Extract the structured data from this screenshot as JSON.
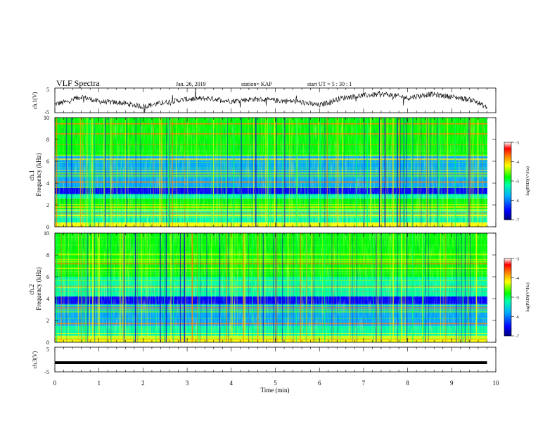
{
  "header": {
    "title": "VLF Spectra",
    "date": "Jan. 26, 2019",
    "station": "station= KAP",
    "start": "start  UT =   5 : 30 : 1"
  },
  "chart_data": [
    {
      "type": "line",
      "name": "ch1-voltage",
      "ylabel": "ch.1(V)",
      "ylim": [
        -5,
        5
      ],
      "yticks": [
        "5",
        "-5"
      ],
      "x": [
        0,
        0.3,
        0.6,
        1.0,
        1.5,
        2.0,
        2.5,
        3.0,
        3.5,
        4.0,
        4.5,
        5.0,
        5.5,
        6.0,
        6.5,
        7.0,
        7.5,
        8.0,
        8.5,
        9.0,
        9.5,
        9.8
      ],
      "y": [
        -1.5,
        -0.5,
        1.5,
        -0.5,
        -1.0,
        -2.5,
        -0.8,
        0.5,
        0.8,
        -0.3,
        0.5,
        0.0,
        -0.5,
        -2.0,
        1.0,
        2.0,
        2.5,
        1.0,
        2.5,
        1.5,
        0.0,
        -3.0
      ]
    },
    {
      "type": "heatmap",
      "name": "ch1-spectrogram",
      "ylabel": "ch.1\nFrequency (kHz)",
      "xlim": [
        0,
        10
      ],
      "ylim": [
        0,
        10
      ],
      "yticks": [
        "0",
        "2",
        "4",
        "6",
        "8",
        "10"
      ],
      "colorbar": {
        "label": "log(PSD)(V²/Hz)",
        "ticks": [
          "-3",
          "-4",
          "-5",
          "-6",
          "-7"
        ],
        "range": [
          -7,
          -3
        ]
      },
      "bands": [
        {
          "range_khz": [
            0,
            0.4
          ],
          "level": -4.5
        },
        {
          "range_khz": [
            0.4,
            1.6
          ],
          "level": -5.3
        },
        {
          "range_khz": [
            1.6,
            2.6
          ],
          "level": -5.0
        },
        {
          "range_khz": [
            2.6,
            3.0
          ],
          "level": -5.3
        },
        {
          "range_khz": [
            3.0,
            3.6
          ],
          "level": -6.6
        },
        {
          "range_khz": [
            3.6,
            5.0
          ],
          "level": -6.0
        },
        {
          "range_khz": [
            5.0,
            6.5
          ],
          "level": -6.2
        },
        {
          "range_khz": [
            6.5,
            10
          ],
          "level": -5.2
        }
      ]
    },
    {
      "type": "heatmap",
      "name": "ch2-spectrogram",
      "ylabel": "ch.2\nFrequency (kHz)",
      "xlim": [
        0,
        10
      ],
      "ylim": [
        0,
        10
      ],
      "yticks": [
        "0",
        "2",
        "4",
        "6",
        "8",
        "10"
      ],
      "colorbar": {
        "label": "log(PSD)(V²/Hz)",
        "ticks": [
          "-3",
          "-4",
          "-5",
          "-6",
          "-7"
        ],
        "range": [
          -7,
          -3
        ]
      },
      "bands": [
        {
          "range_khz": [
            0,
            0.5
          ],
          "level": -4.6
        },
        {
          "range_khz": [
            0.5,
            1.5
          ],
          "level": -5.4
        },
        {
          "range_khz": [
            1.5,
            3.5
          ],
          "level": -5.8
        },
        {
          "range_khz": [
            3.5,
            4.2
          ],
          "level": -6.6
        },
        {
          "range_khz": [
            4.2,
            6.0
          ],
          "level": -5.3
        },
        {
          "range_khz": [
            6.0,
            10
          ],
          "level": -4.8
        }
      ]
    },
    {
      "type": "line",
      "name": "ch3-voltage",
      "ylabel": "ch.3(V)",
      "ylim": [
        -5,
        5
      ],
      "yticks": [
        "5",
        "-5"
      ],
      "x": [
        0,
        9.8
      ],
      "y": [
        -1.3,
        -1.3
      ]
    }
  ],
  "xaxis": {
    "label": "Time (min)",
    "ticks": [
      "0",
      "1",
      "2",
      "3",
      "4",
      "5",
      "6",
      "7",
      "8",
      "9",
      "10"
    ],
    "range": [
      0,
      10
    ]
  },
  "colors": {
    "colormap": [
      "#000080",
      "#0000ff",
      "#00aaff",
      "#00ffaa",
      "#00ff00",
      "#ffff00",
      "#ff7f00",
      "#ff0000",
      "#ffffff"
    ]
  }
}
